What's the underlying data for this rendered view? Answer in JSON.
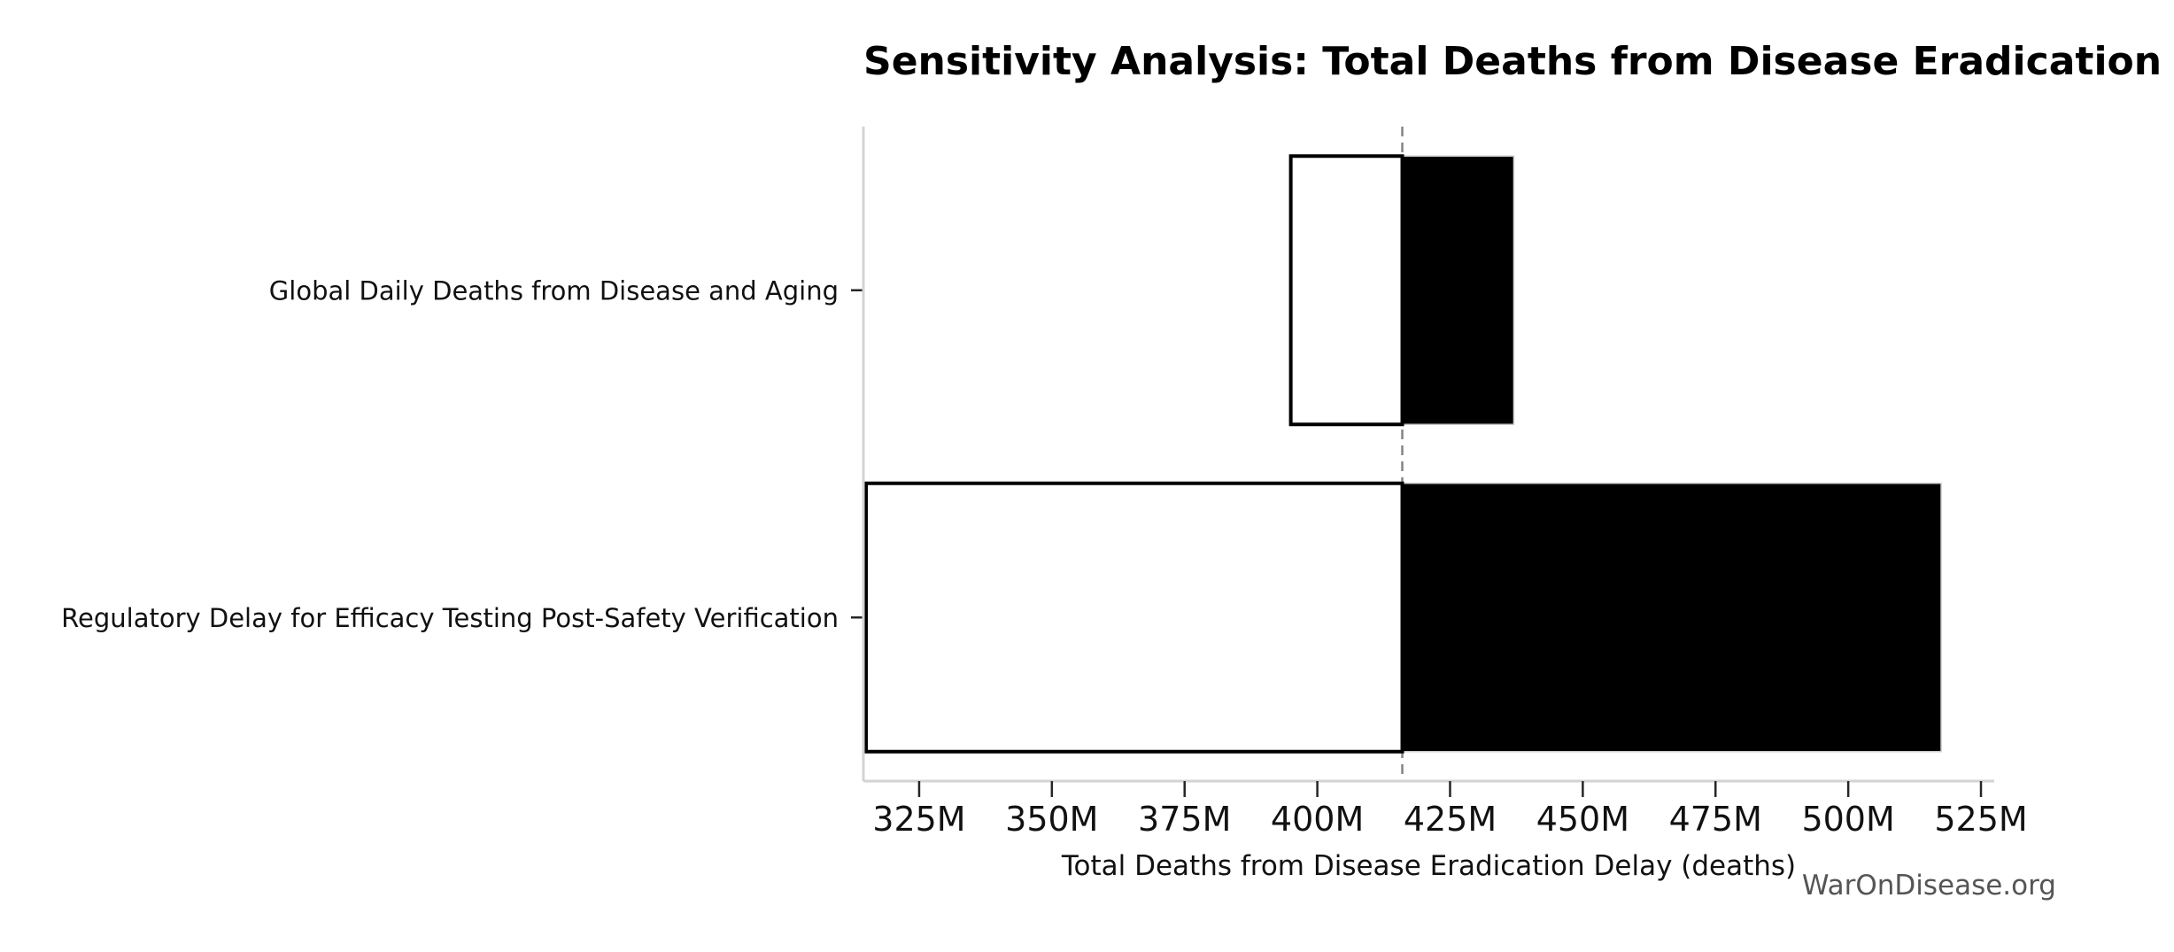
{
  "watermark": "WarOnDisease.org",
  "chart_data": {
    "type": "bar",
    "subtype": "tornado-sensitivity",
    "orientation": "horizontal",
    "title": "Sensitivity Analysis: Total Deaths from Disease Eradication Delay",
    "xlabel": "Total Deaths from Disease Eradication Delay (deaths)",
    "ylabel": "",
    "unit_suffix": "M",
    "base_value": 416,
    "xlim": [
      314.5,
      527.5
    ],
    "x_tick_values": [
      325,
      350,
      375,
      400,
      425,
      450,
      475,
      500,
      525
    ],
    "x_tick_labels": [
      "325M",
      "350M",
      "375M",
      "400M",
      "425M",
      "450M",
      "475M",
      "500M",
      "525M"
    ],
    "grid": false,
    "legend": false,
    "bars": [
      {
        "category": "Global Daily Deaths from Disease and Aging",
        "low": 395,
        "high": 437
      },
      {
        "category": "Regulatory Delay for Efficacy Testing Post-Safety Verification",
        "low": 315,
        "high": 517.5
      }
    ],
    "colors": {
      "background": "#ffffff",
      "bar_low_fill": "#ffffff",
      "bar_low_edge": "#000000",
      "bar_high_fill": "#000000",
      "bar_high_edge": "#cccccc",
      "baseline": "#848484",
      "spine": "#d3d3d3",
      "tick": "#262626",
      "text": "#111111",
      "watermark": "#555555"
    }
  }
}
